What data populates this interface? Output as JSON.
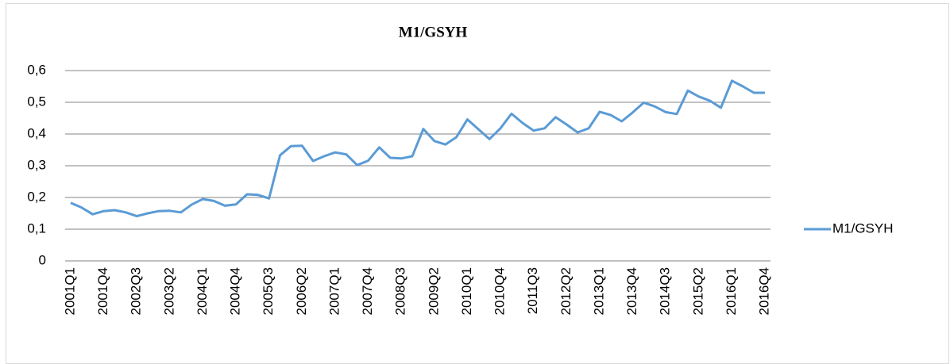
{
  "chart_data": {
    "type": "line",
    "title": "M1/GSYH",
    "categories": [
      "2001Q1",
      null,
      null,
      "2001Q4",
      null,
      null,
      "2002Q3",
      null,
      null,
      "2003Q2",
      null,
      null,
      "2004Q1",
      null,
      null,
      "2004Q4",
      null,
      null,
      "2005Q3",
      null,
      null,
      "2006Q2",
      null,
      null,
      "2007Q1",
      null,
      null,
      "2007Q4",
      null,
      null,
      "2008Q3",
      null,
      null,
      "2009Q2",
      null,
      null,
      "2010Q1",
      null,
      null,
      "2010Q4",
      null,
      null,
      "2011Q3",
      null,
      null,
      "2012Q2",
      null,
      null,
      "2013Q1",
      null,
      null,
      "2013Q4",
      null,
      null,
      "2014Q3",
      null,
      null,
      "2015Q2",
      null,
      null,
      "2016Q1",
      null,
      null,
      "2016Q4"
    ],
    "series": [
      {
        "name": "M1/GSYH",
        "color": "#5b9bd5",
        "values": [
          0.183,
          0.168,
          0.147,
          0.157,
          0.16,
          0.153,
          0.141,
          0.15,
          0.157,
          0.158,
          0.153,
          0.178,
          0.195,
          0.189,
          0.174,
          0.178,
          0.21,
          0.208,
          0.197,
          0.333,
          0.362,
          0.363,
          0.315,
          0.33,
          0.342,
          0.336,
          0.302,
          0.316,
          0.358,
          0.325,
          0.323,
          0.33,
          0.416,
          0.378,
          0.367,
          0.39,
          0.446,
          0.415,
          0.384,
          0.418,
          0.464,
          0.435,
          0.411,
          0.418,
          0.453,
          0.43,
          0.405,
          0.418,
          0.47,
          0.46,
          0.44,
          0.468,
          0.499,
          0.487,
          0.469,
          0.463,
          0.537,
          0.518,
          0.505,
          0.483,
          0.568,
          0.55,
          0.53,
          0.53
        ]
      }
    ],
    "ylim": [
      0,
      0.6
    ],
    "yticks": [
      0,
      {
        "value": 0.1,
        "label": "0,1"
      },
      {
        "value": 0.2,
        "label": "0,2"
      },
      {
        "value": 0.3,
        "label": "0,3"
      },
      {
        "value": 0.4,
        "label": "0,4"
      },
      {
        "value": 0.5,
        "label": "0,5"
      },
      {
        "value": 0.6,
        "label": "0,6"
      }
    ],
    "grid": true,
    "legend": "right"
  }
}
